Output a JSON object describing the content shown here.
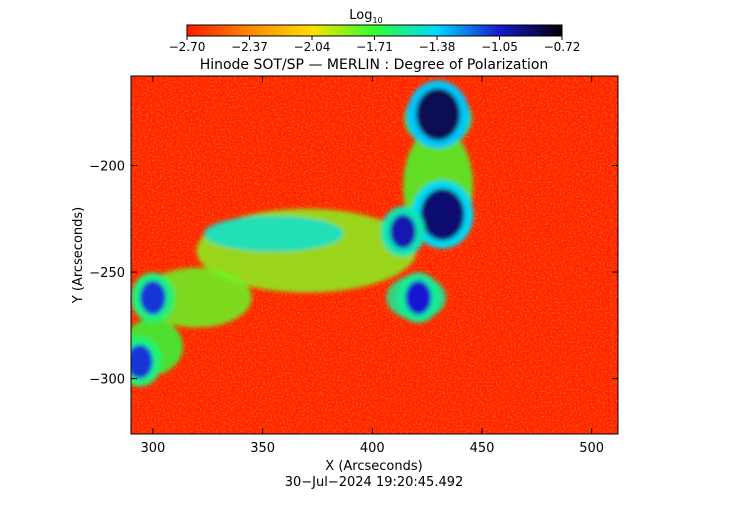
{
  "colorbar": {
    "label_main": "Log",
    "label_sub": "10",
    "tick_labels": [
      "−2.70",
      "−2.37",
      "−2.04",
      "−1.71",
      "−1.38",
      "−1.05",
      "−0.72"
    ],
    "colors": [
      "#ff1a00",
      "#ff8800",
      "#ffe000",
      "#30ff30",
      "#00d8ff",
      "#1818d0",
      "#000000"
    ]
  },
  "chart_data": {
    "type": "heatmap",
    "title": "Hinode SOT/SP — MERLIN : Degree of Polarization",
    "xlabel": "X (Arcseconds)",
    "ylabel": "Y (Arcseconds)",
    "xlim": [
      290,
      512
    ],
    "ylim": [
      -326,
      -158
    ],
    "xticks": [
      300,
      350,
      400,
      450,
      500
    ],
    "yticks": [
      -200,
      -250,
      -300
    ],
    "color_scale": "log10",
    "value_range": [
      -2.7,
      -0.72
    ],
    "timestamp": "30−Jul−2024 19:20:45.492",
    "features": [
      {
        "name": "sunspot-top",
        "x": 430,
        "y": -176,
        "value": -0.85
      },
      {
        "name": "sunspot-middle",
        "x": 432,
        "y": -223,
        "value": -0.9
      },
      {
        "name": "pore-middle-left",
        "x": 414,
        "y": -231,
        "value": -1.0
      },
      {
        "name": "pore-lower",
        "x": 421,
        "y": -262,
        "value": -1.05
      },
      {
        "name": "left-edge-cluster",
        "x": 300,
        "y": -262,
        "value": -1.1
      },
      {
        "name": "left-edge-cluster-lower",
        "x": 294,
        "y": -292,
        "value": -1.1
      }
    ]
  }
}
